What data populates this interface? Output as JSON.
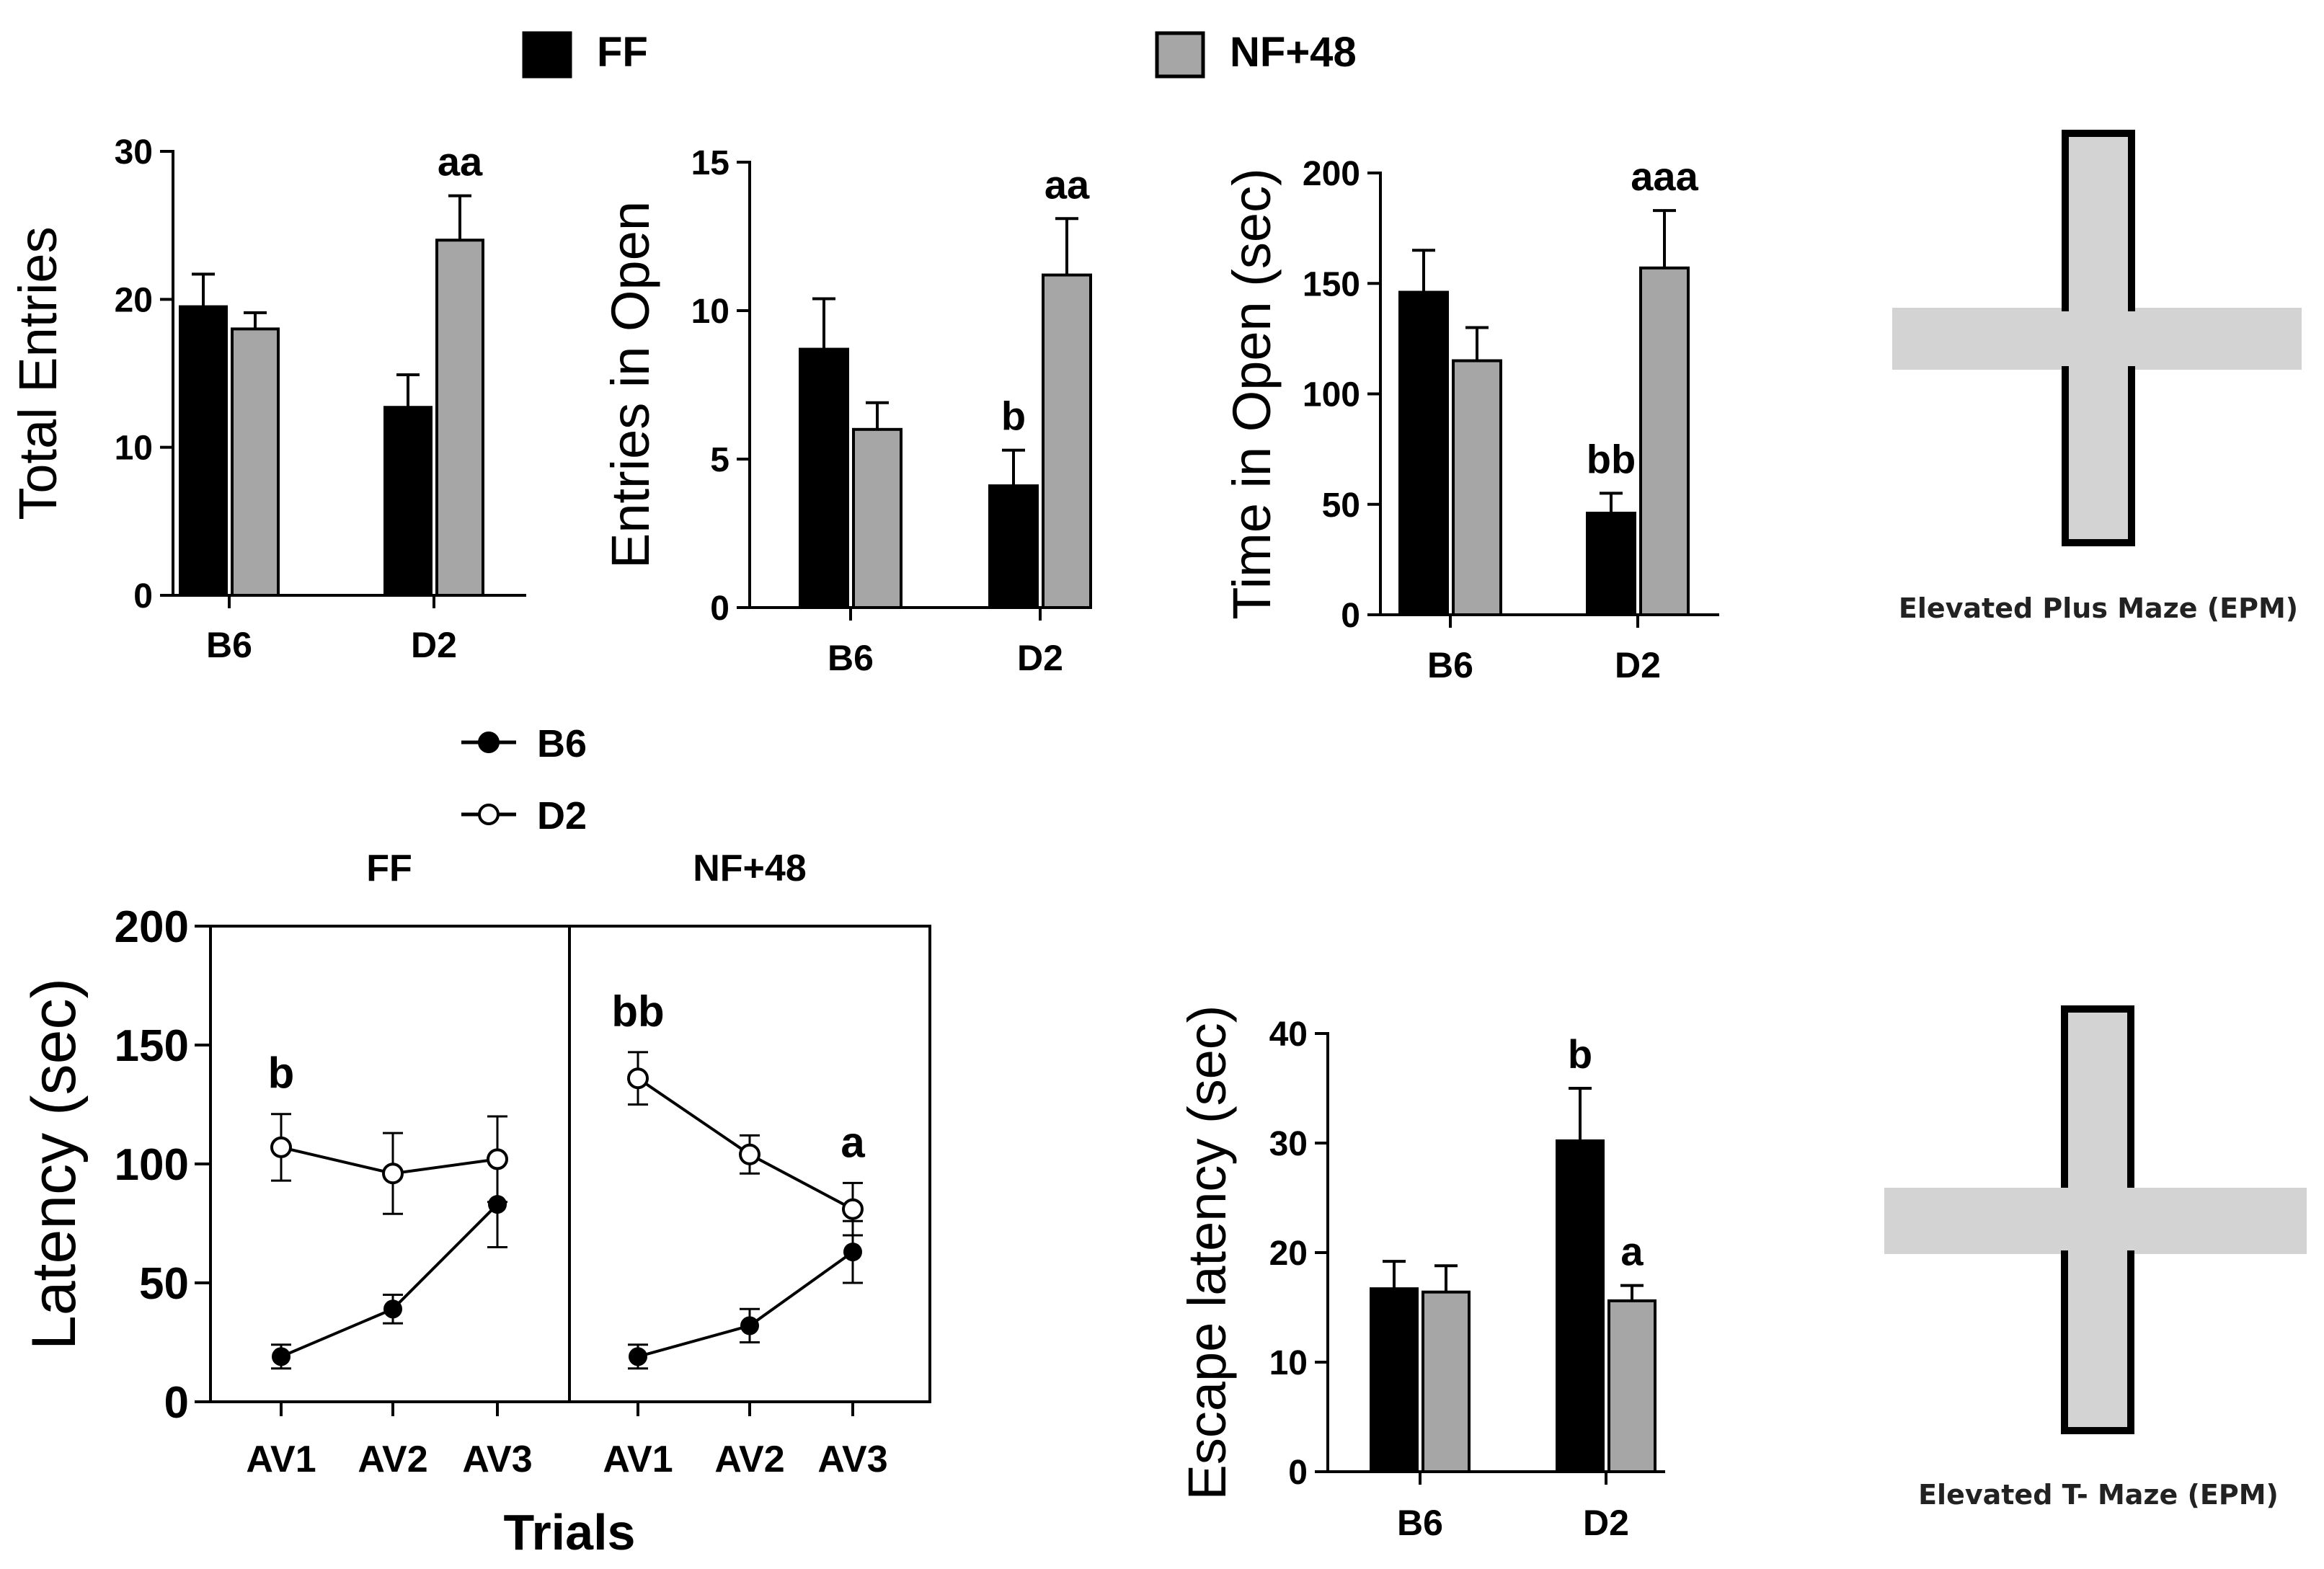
{
  "legend_top": {
    "items": [
      {
        "label": "FF",
        "color": "#000000"
      },
      {
        "label": "NF+48",
        "color": "#a6a6a6"
      }
    ]
  },
  "legend_line": {
    "items": [
      {
        "label": "B6",
        "marker": "filled-circle"
      },
      {
        "label": "D2",
        "marker": "open-circle"
      }
    ]
  },
  "colors": {
    "ff": "#000000",
    "nf48": "#a6a6a6",
    "maze": "#d3d3d3"
  },
  "chart_data": [
    {
      "id": "total-entries",
      "type": "bar",
      "ylabel": "Total Entries",
      "ylim": [
        0,
        30
      ],
      "yticks": [
        0,
        10,
        20,
        30
      ],
      "categories": [
        "B6",
        "D2"
      ],
      "series": [
        {
          "name": "FF",
          "values": [
            19.5,
            12.7
          ],
          "errors": [
            2.2,
            2.2
          ]
        },
        {
          "name": "NF+48",
          "values": [
            18.0,
            24.0
          ],
          "errors": [
            1.1,
            3.0
          ]
        }
      ],
      "annotations": [
        {
          "category": "D2",
          "series": "NF+48",
          "text": "aa"
        }
      ]
    },
    {
      "id": "entries-open",
      "type": "bar",
      "ylabel": "Entries in Open",
      "ylim": [
        0,
        15
      ],
      "yticks": [
        0,
        5,
        10,
        15
      ],
      "categories": [
        "B6",
        "D2"
      ],
      "series": [
        {
          "name": "FF",
          "values": [
            8.7,
            4.1
          ],
          "errors": [
            1.7,
            1.2
          ]
        },
        {
          "name": "NF+48",
          "values": [
            6.0,
            11.2
          ],
          "errors": [
            0.9,
            1.9
          ]
        }
      ],
      "annotations": [
        {
          "category": "D2",
          "series": "FF",
          "text": "b"
        },
        {
          "category": "D2",
          "series": "NF+48",
          "text": "aa"
        }
      ]
    },
    {
      "id": "time-open",
      "type": "bar",
      "ylabel": "Time in Open (sec)",
      "ylim": [
        0,
        200
      ],
      "yticks": [
        0,
        50,
        100,
        150,
        200
      ],
      "categories": [
        "B6",
        "D2"
      ],
      "series": [
        {
          "name": "FF",
          "values": [
            146,
            46
          ],
          "errors": [
            19,
            9
          ]
        },
        {
          "name": "NF+48",
          "values": [
            115,
            157
          ],
          "errors": [
            15,
            26
          ]
        }
      ],
      "annotations": [
        {
          "category": "D2",
          "series": "FF",
          "text": "bb"
        },
        {
          "category": "D2",
          "series": "NF+48",
          "text": "aaa"
        }
      ]
    },
    {
      "id": "latency",
      "type": "line",
      "ylabel": "Latency (sec)",
      "xlabel": "Trials",
      "ylim": [
        0,
        200
      ],
      "yticks": [
        0,
        50,
        100,
        150,
        200
      ],
      "panels": [
        {
          "title": "FF",
          "x": [
            "AV1",
            "AV2",
            "AV3"
          ],
          "series": [
            {
              "name": "B6",
              "values": [
                19,
                39,
                83
              ],
              "errors": [
                5,
                6,
                18
              ]
            },
            {
              "name": "D2",
              "values": [
                107,
                96,
                102
              ],
              "errors": [
                14,
                17,
                18
              ]
            }
          ],
          "annotations": [
            {
              "index": 0,
              "series": "D2",
              "text": "b"
            }
          ]
        },
        {
          "title": "NF+48",
          "x": [
            "AV1",
            "AV2",
            "AV3"
          ],
          "series": [
            {
              "name": "B6",
              "values": [
                19,
                32,
                63
              ],
              "errors": [
                5,
                7,
                13
              ]
            },
            {
              "name": "D2",
              "values": [
                136,
                104,
                81
              ],
              "errors": [
                11,
                8,
                11
              ]
            }
          ],
          "annotations": [
            {
              "index": 0,
              "series": "D2",
              "text": "bb"
            },
            {
              "index": 2,
              "series": "D2",
              "text": "a"
            }
          ]
        }
      ]
    },
    {
      "id": "escape-latency",
      "type": "bar",
      "ylabel": "Escape latency (sec)",
      "ylim": [
        0,
        40
      ],
      "yticks": [
        0,
        10,
        20,
        30,
        40
      ],
      "categories": [
        "B6",
        "D2"
      ],
      "series": [
        {
          "name": "FF",
          "values": [
            16.7,
            30.2
          ],
          "errors": [
            2.5,
            4.8
          ]
        },
        {
          "name": "NF+48",
          "values": [
            16.4,
            15.6
          ],
          "errors": [
            2.4,
            1.4
          ]
        }
      ],
      "annotations": [
        {
          "category": "D2",
          "series": "FF",
          "text": "b"
        },
        {
          "category": "D2",
          "series": "NF+48",
          "text": "a"
        }
      ]
    }
  ],
  "diagrams": {
    "epm_label": "Elevated Plus Maze (EPM)",
    "etm_label": "Elevated T- Maze (EPM)"
  }
}
